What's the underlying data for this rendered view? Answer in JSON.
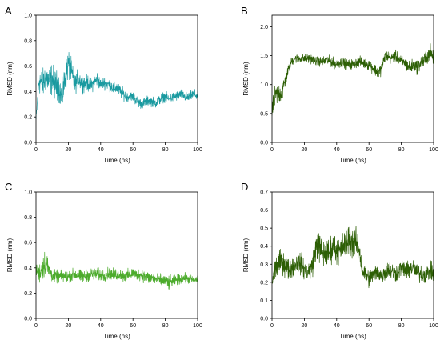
{
  "chart_data": [
    {
      "panel": "A",
      "type": "line",
      "color": "#1a9aa0",
      "xlabel": "Time (ns)",
      "ylabel": "RMSD (nm)",
      "xlim": [
        0,
        100
      ],
      "ylim": [
        0,
        1.0
      ],
      "xticks": [
        0,
        20,
        40,
        60,
        80,
        100
      ],
      "yticks": [
        0.0,
        0.2,
        0.4,
        0.6,
        0.8,
        1.0
      ],
      "ytick_labels": [
        "0.0",
        "0.2",
        "0.4",
        "0.6",
        "0.8",
        "1.0"
      ],
      "series": [
        {
          "x": [
            0,
            2,
            4,
            6,
            8,
            10,
            12,
            14,
            16,
            18,
            20,
            22,
            24,
            26,
            28,
            30,
            32,
            34,
            36,
            38,
            40,
            42,
            44,
            46,
            48,
            50,
            52,
            54,
            56,
            58,
            60,
            62,
            64,
            66,
            68,
            70,
            72,
            74,
            76,
            78,
            80,
            82,
            84,
            86,
            88,
            90,
            92,
            94,
            96,
            98,
            100
          ],
          "y": [
            0.18,
            0.5,
            0.45,
            0.52,
            0.48,
            0.5,
            0.45,
            0.44,
            0.35,
            0.5,
            0.62,
            0.55,
            0.45,
            0.5,
            0.48,
            0.46,
            0.47,
            0.45,
            0.47,
            0.5,
            0.45,
            0.47,
            0.46,
            0.45,
            0.42,
            0.43,
            0.4,
            0.38,
            0.36,
            0.36,
            0.36,
            0.33,
            0.31,
            0.3,
            0.32,
            0.33,
            0.32,
            0.31,
            0.33,
            0.35,
            0.36,
            0.34,
            0.35,
            0.36,
            0.37,
            0.38,
            0.36,
            0.35,
            0.37,
            0.38,
            0.36
          ],
          "noise": [
            0.03,
            0.12,
            0.12,
            0.12,
            0.12,
            0.13,
            0.12,
            0.12,
            0.12,
            0.12,
            0.12,
            0.1,
            0.08,
            0.08,
            0.07,
            0.07,
            0.07,
            0.06,
            0.06,
            0.06,
            0.05,
            0.05,
            0.05,
            0.05,
            0.05,
            0.05,
            0.05,
            0.05,
            0.04,
            0.04,
            0.04,
            0.04,
            0.04,
            0.04,
            0.04,
            0.04,
            0.04,
            0.04,
            0.04,
            0.04,
            0.04,
            0.04,
            0.04,
            0.04,
            0.04,
            0.04,
            0.04,
            0.04,
            0.04,
            0.04,
            0.04
          ]
        }
      ]
    },
    {
      "panel": "B",
      "type": "line",
      "color": "#2d5f05",
      "xlabel": "Time (ns)",
      "ylabel": "RMSD (nm)",
      "xlim": [
        0,
        100
      ],
      "ylim": [
        0,
        2.2
      ],
      "xticks": [
        0,
        20,
        40,
        60,
        80,
        100
      ],
      "yticks": [
        0.0,
        0.5,
        1.0,
        1.5,
        2.0
      ],
      "ytick_labels": [
        "0.0",
        "0.5",
        "1.0",
        "1.5",
        "2.0"
      ],
      "series": [
        {
          "x": [
            0,
            2,
            4,
            6,
            8,
            10,
            12,
            14,
            16,
            18,
            20,
            22,
            24,
            26,
            28,
            30,
            32,
            34,
            36,
            38,
            40,
            42,
            44,
            46,
            48,
            50,
            52,
            54,
            56,
            58,
            60,
            62,
            64,
            66,
            68,
            70,
            72,
            74,
            76,
            78,
            80,
            82,
            84,
            86,
            88,
            90,
            92,
            94,
            96,
            98,
            100
          ],
          "y": [
            0.55,
            0.8,
            0.85,
            0.85,
            1.05,
            1.25,
            1.4,
            1.45,
            1.45,
            1.45,
            1.45,
            1.45,
            1.45,
            1.42,
            1.4,
            1.4,
            1.4,
            1.42,
            1.4,
            1.38,
            1.35,
            1.38,
            1.38,
            1.35,
            1.35,
            1.35,
            1.38,
            1.4,
            1.38,
            1.35,
            1.35,
            1.3,
            1.25,
            1.2,
            1.3,
            1.5,
            1.48,
            1.45,
            1.5,
            1.45,
            1.4,
            1.38,
            1.32,
            1.3,
            1.35,
            1.3,
            1.38,
            1.4,
            1.5,
            1.55,
            1.45
          ],
          "noise": [
            0.15,
            0.2,
            0.18,
            0.18,
            0.15,
            0.1,
            0.08,
            0.08,
            0.08,
            0.08,
            0.08,
            0.08,
            0.08,
            0.08,
            0.08,
            0.08,
            0.09,
            0.09,
            0.09,
            0.09,
            0.09,
            0.09,
            0.09,
            0.09,
            0.09,
            0.09,
            0.09,
            0.09,
            0.09,
            0.09,
            0.1,
            0.1,
            0.1,
            0.12,
            0.1,
            0.1,
            0.1,
            0.1,
            0.1,
            0.1,
            0.1,
            0.1,
            0.12,
            0.12,
            0.12,
            0.12,
            0.12,
            0.13,
            0.15,
            0.15,
            0.1
          ]
        }
      ]
    },
    {
      "panel": "C",
      "type": "line",
      "color": "#4cab2c",
      "xlabel": "Time (ns)",
      "ylabel": "RMSD (nm)",
      "xlim": [
        0,
        100
      ],
      "ylim": [
        0,
        1.0
      ],
      "xticks": [
        0,
        20,
        40,
        60,
        80,
        100
      ],
      "yticks": [
        0.0,
        0.2,
        0.4,
        0.6,
        0.8,
        1.0
      ],
      "ytick_labels": [
        "0.0",
        "0.2",
        "0.4",
        "0.6",
        "0.8",
        "1.0"
      ],
      "series": [
        {
          "x": [
            0,
            2,
            4,
            6,
            8,
            10,
            12,
            14,
            16,
            18,
            20,
            22,
            24,
            26,
            28,
            30,
            32,
            34,
            36,
            38,
            40,
            42,
            44,
            46,
            48,
            50,
            52,
            54,
            56,
            58,
            60,
            62,
            64,
            66,
            68,
            70,
            72,
            74,
            76,
            78,
            80,
            82,
            84,
            86,
            88,
            90,
            92,
            94,
            96,
            98,
            100
          ],
          "y": [
            0.38,
            0.36,
            0.4,
            0.45,
            0.38,
            0.34,
            0.33,
            0.33,
            0.34,
            0.33,
            0.33,
            0.34,
            0.35,
            0.34,
            0.33,
            0.33,
            0.34,
            0.35,
            0.35,
            0.35,
            0.34,
            0.34,
            0.35,
            0.36,
            0.34,
            0.35,
            0.35,
            0.34,
            0.33,
            0.35,
            0.36,
            0.34,
            0.35,
            0.34,
            0.33,
            0.32,
            0.32,
            0.31,
            0.3,
            0.3,
            0.3,
            0.28,
            0.29,
            0.3,
            0.31,
            0.31,
            0.32,
            0.31,
            0.31,
            0.3,
            0.31
          ],
          "noise": [
            0.05,
            0.08,
            0.1,
            0.12,
            0.07,
            0.05,
            0.05,
            0.05,
            0.05,
            0.05,
            0.05,
            0.05,
            0.05,
            0.05,
            0.05,
            0.05,
            0.05,
            0.05,
            0.05,
            0.05,
            0.05,
            0.05,
            0.05,
            0.05,
            0.05,
            0.05,
            0.05,
            0.05,
            0.05,
            0.05,
            0.05,
            0.05,
            0.05,
            0.05,
            0.05,
            0.05,
            0.05,
            0.05,
            0.05,
            0.05,
            0.05,
            0.06,
            0.05,
            0.04,
            0.04,
            0.04,
            0.04,
            0.04,
            0.03,
            0.03,
            0.03
          ]
        }
      ]
    },
    {
      "panel": "D",
      "type": "line",
      "color": "#2d5f05",
      "xlabel": "Time (ns)",
      "ylabel": "RMSD (nm)",
      "xlim": [
        0,
        100
      ],
      "ylim": [
        0,
        0.7
      ],
      "xticks": [
        0,
        20,
        40,
        60,
        80,
        100
      ],
      "yticks": [
        0.0,
        0.1,
        0.2,
        0.3,
        0.4,
        0.5,
        0.6,
        0.7
      ],
      "ytick_labels": [
        "0.0",
        "0.1",
        "0.2",
        "0.3",
        "0.4",
        "0.5",
        "0.6",
        "0.7"
      ],
      "series": [
        {
          "x": [
            0,
            2,
            4,
            6,
            8,
            10,
            12,
            14,
            16,
            18,
            20,
            22,
            24,
            26,
            28,
            30,
            32,
            34,
            36,
            38,
            40,
            42,
            44,
            46,
            48,
            50,
            52,
            54,
            56,
            58,
            60,
            62,
            64,
            66,
            68,
            70,
            72,
            74,
            76,
            78,
            80,
            82,
            84,
            86,
            88,
            90,
            92,
            94,
            96,
            98,
            100
          ],
          "y": [
            0.2,
            0.28,
            0.3,
            0.32,
            0.3,
            0.27,
            0.28,
            0.3,
            0.31,
            0.3,
            0.27,
            0.26,
            0.27,
            0.33,
            0.42,
            0.38,
            0.36,
            0.35,
            0.38,
            0.4,
            0.38,
            0.37,
            0.4,
            0.42,
            0.45,
            0.42,
            0.42,
            0.38,
            0.26,
            0.24,
            0.22,
            0.24,
            0.25,
            0.25,
            0.24,
            0.26,
            0.27,
            0.26,
            0.25,
            0.26,
            0.28,
            0.27,
            0.26,
            0.28,
            0.27,
            0.25,
            0.25,
            0.24,
            0.25,
            0.26,
            0.25
          ],
          "noise": [
            0.05,
            0.07,
            0.07,
            0.07,
            0.07,
            0.06,
            0.06,
            0.06,
            0.06,
            0.06,
            0.06,
            0.06,
            0.06,
            0.08,
            0.1,
            0.08,
            0.08,
            0.08,
            0.08,
            0.08,
            0.08,
            0.08,
            0.08,
            0.09,
            0.1,
            0.1,
            0.08,
            0.07,
            0.05,
            0.05,
            0.05,
            0.05,
            0.05,
            0.05,
            0.05,
            0.05,
            0.05,
            0.06,
            0.05,
            0.05,
            0.05,
            0.05,
            0.05,
            0.06,
            0.05,
            0.05,
            0.05,
            0.05,
            0.05,
            0.05,
            0.05
          ]
        }
      ]
    }
  ]
}
